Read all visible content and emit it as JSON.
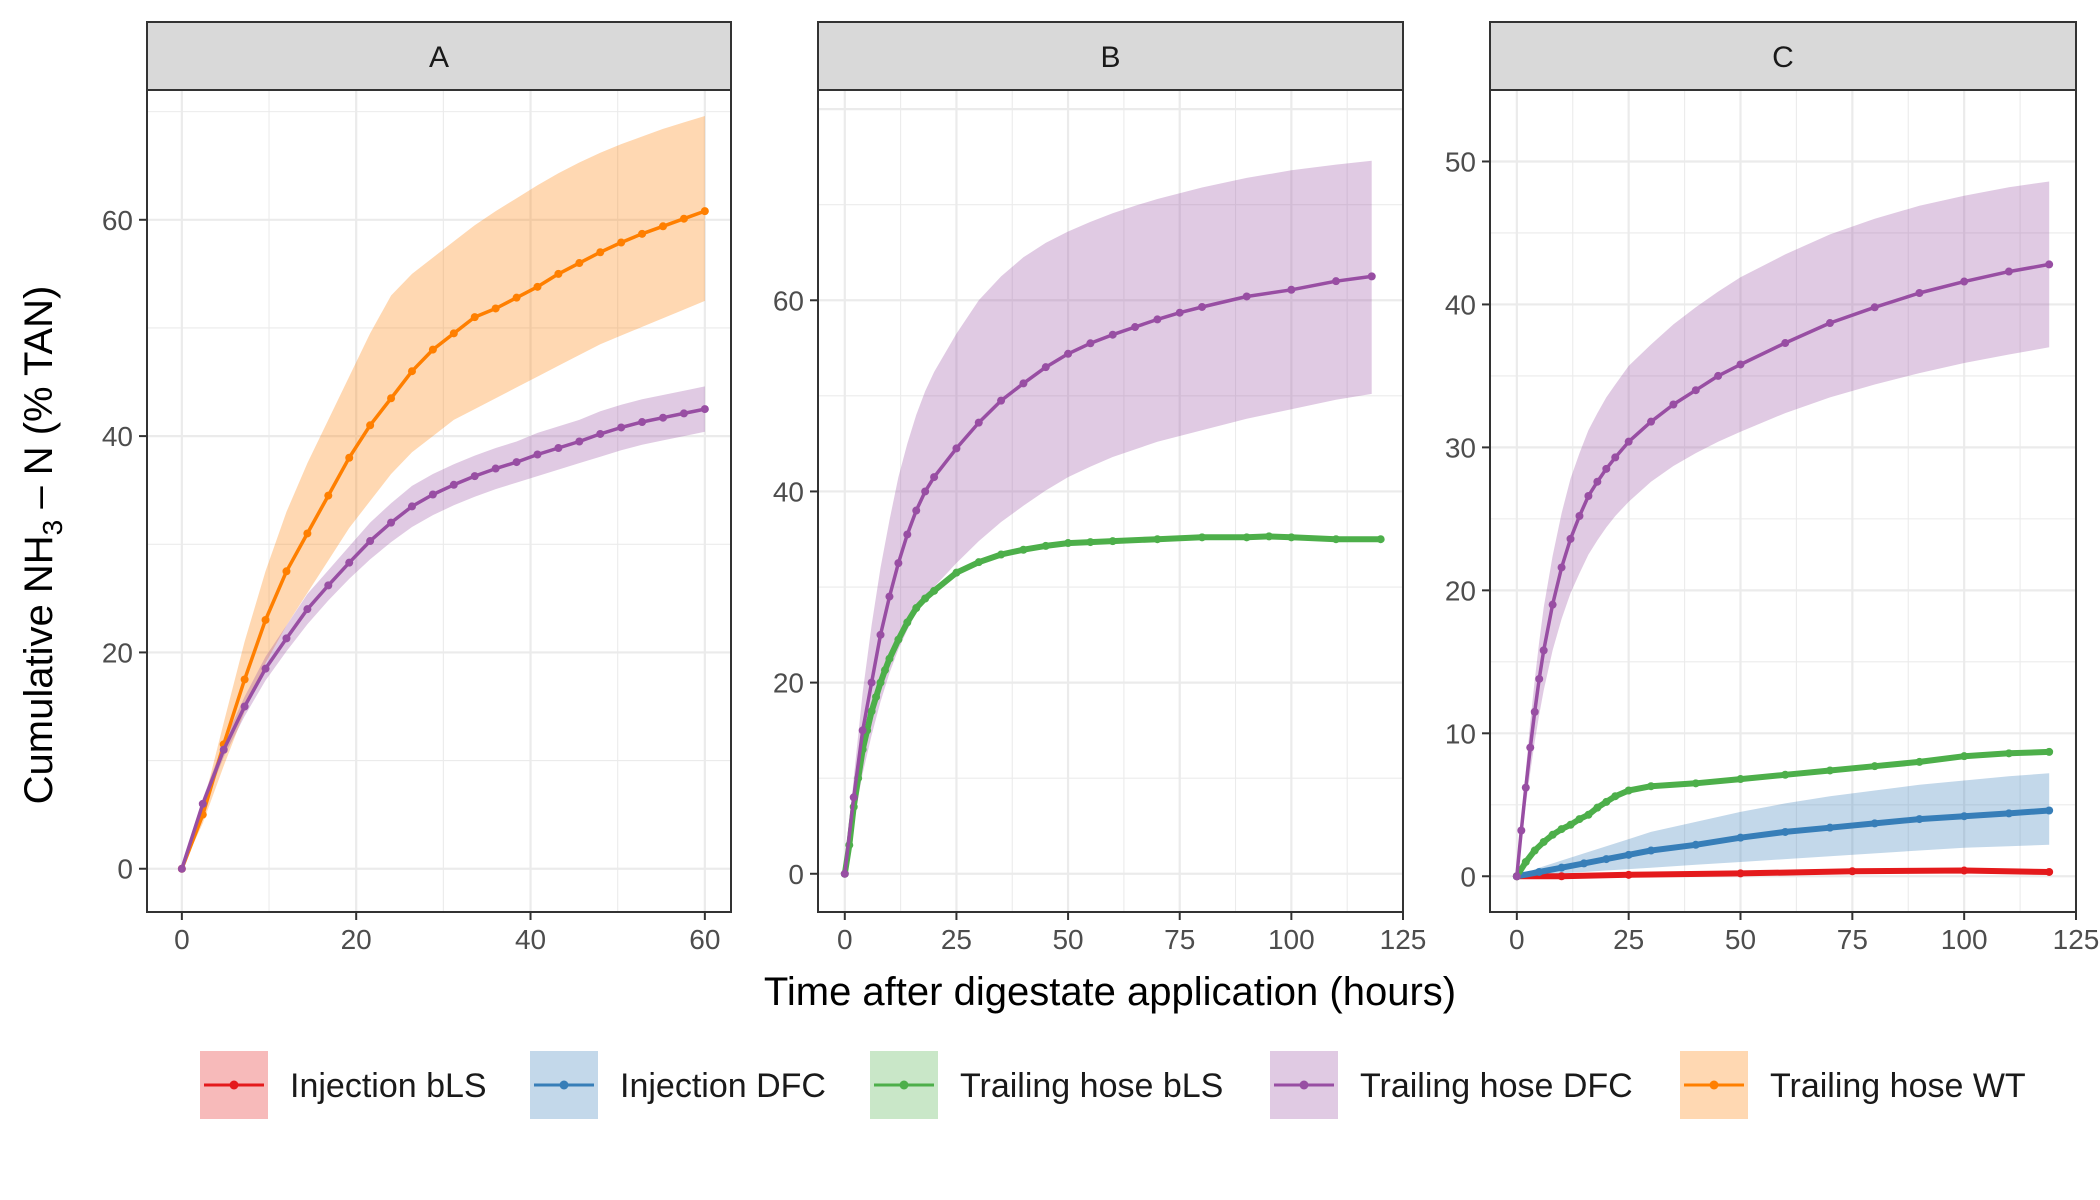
{
  "colors": {
    "Injection bLS": "#E41A1C",
    "Injection DFC": "#377EB8",
    "Trailing hose bLS": "#4DAF4A",
    "Trailing hose DFC": "#984EA3",
    "Trailing hose WT": "#FF7F00"
  },
  "axes": {
    "xlabel": "Time after digestate application (hours)",
    "ylabel_prefix": "Cumulative  NH",
    "ylabel_sub": "3",
    "ylabel_suffix": " – N  (% TAN)"
  },
  "legend": {
    "position": "bottom",
    "items": [
      "Injection bLS",
      "Injection DFC",
      "Trailing hose bLS",
      "Trailing hose DFC",
      "Trailing hose WT"
    ]
  },
  "chart_data": [
    {
      "type": "line",
      "panel": "A",
      "xlim": [
        -4,
        63
      ],
      "ylim": [
        -4,
        72
      ],
      "xticks": [
        0,
        20,
        40,
        60
      ],
      "yticks": [
        0,
        20,
        40,
        60
      ],
      "grid": true,
      "series": [
        {
          "name": "Trailing hose WT",
          "x": [
            0,
            2.4,
            4.8,
            7.2,
            9.6,
            12,
            14.4,
            16.8,
            19.2,
            21.6,
            24,
            26.4,
            28.8,
            31.2,
            33.6,
            36,
            38.4,
            40.8,
            43.2,
            45.6,
            48,
            50.4,
            52.8,
            55.2,
            57.6,
            60
          ],
          "y": [
            0,
            5,
            11.5,
            17.5,
            23,
            27.5,
            31,
            34.5,
            38,
            41,
            43.5,
            46,
            48,
            49.5,
            51,
            51.8,
            52.8,
            53.8,
            55,
            56,
            57,
            57.9,
            58.7,
            59.4,
            60.1,
            60.8
          ],
          "lower": [
            0,
            4.2,
            9.5,
            14.5,
            19,
            22.5,
            25.5,
            28.5,
            31.5,
            34,
            36.5,
            38.5,
            40,
            41.5,
            42.5,
            43.5,
            44.5,
            45.5,
            46.5,
            47.5,
            48.5,
            49.3,
            50.1,
            50.9,
            51.7,
            52.5
          ],
          "upper": [
            0,
            5.8,
            13.5,
            21,
            27.5,
            33,
            37.5,
            41.5,
            45.5,
            49.5,
            53,
            55,
            56.5,
            58,
            59.5,
            60.8,
            62,
            63.2,
            64.3,
            65.3,
            66.2,
            67,
            67.7,
            68.4,
            69,
            69.6
          ]
        },
        {
          "name": "Trailing hose DFC",
          "x": [
            0,
            2.4,
            4.8,
            7.2,
            9.6,
            12,
            14.4,
            16.8,
            19.2,
            21.6,
            24,
            26.4,
            28.8,
            31.2,
            33.6,
            36,
            38.4,
            40.8,
            43.2,
            45.6,
            48,
            50.4,
            52.8,
            55.2,
            57.6,
            60
          ],
          "y": [
            0,
            6,
            11,
            15,
            18.5,
            21.3,
            24,
            26.2,
            28.3,
            30.3,
            32,
            33.5,
            34.6,
            35.5,
            36.3,
            37,
            37.6,
            38.3,
            38.9,
            39.5,
            40.2,
            40.8,
            41.3,
            41.7,
            42.1,
            42.5
          ],
          "lower": [
            0,
            5.5,
            10.3,
            14.1,
            17.4,
            20.1,
            22.6,
            24.8,
            26.8,
            28.6,
            30.2,
            31.6,
            32.7,
            33.6,
            34.4,
            35.1,
            35.7,
            36.3,
            36.9,
            37.5,
            38.1,
            38.7,
            39.2,
            39.6,
            40,
            40.4
          ],
          "upper": [
            0,
            6.5,
            11.7,
            15.9,
            19.6,
            22.5,
            25.4,
            27.6,
            29.8,
            32,
            33.8,
            35.4,
            36.5,
            37.4,
            38.2,
            38.9,
            39.5,
            40.3,
            40.9,
            41.5,
            42.3,
            42.9,
            43.4,
            43.8,
            44.2,
            44.6
          ]
        }
      ]
    },
    {
      "type": "line",
      "panel": "B",
      "xlim": [
        -6,
        125
      ],
      "ylim": [
        -4,
        82
      ],
      "xticks": [
        0,
        25,
        50,
        75,
        100,
        125
      ],
      "yticks": [
        0,
        20,
        40,
        60
      ],
      "grid": true,
      "series": [
        {
          "name": "Trailing hose bLS",
          "x": [
            0,
            1,
            2,
            3,
            4,
            5,
            6,
            7,
            8,
            9,
            10,
            12,
            14,
            16,
            18,
            20,
            25,
            30,
            35,
            40,
            45,
            50,
            55,
            60,
            70,
            80,
            90,
            95,
            100,
            110,
            120
          ],
          "y": [
            0,
            3,
            7,
            10,
            13,
            15,
            17,
            18.5,
            20,
            21.3,
            22.5,
            24.5,
            26.3,
            27.8,
            28.8,
            29.6,
            31.5,
            32.6,
            33.4,
            33.9,
            34.3,
            34.6,
            34.7,
            34.8,
            35,
            35.2,
            35.2,
            35.3,
            35.2,
            35,
            35
          ]
        },
        {
          "name": "Trailing hose DFC",
          "x": [
            0,
            2,
            4,
            6,
            8,
            10,
            12,
            14,
            16,
            18,
            20,
            25,
            30,
            35,
            40,
            45,
            50,
            55,
            60,
            65,
            70,
            75,
            80,
            90,
            100,
            110,
            118
          ],
          "y": [
            0,
            8,
            15,
            20,
            25,
            29,
            32.5,
            35.5,
            38,
            40,
            41.5,
            44.5,
            47.2,
            49.5,
            51.3,
            53,
            54.4,
            55.5,
            56.4,
            57.2,
            58,
            58.7,
            59.3,
            60.4,
            61.1,
            62,
            62.5
          ],
          "lower": [
            0,
            5.5,
            10.5,
            14.5,
            18,
            21,
            23.5,
            25.5,
            27.3,
            28.8,
            30,
            32.5,
            34.8,
            36.8,
            38.5,
            40.1,
            41.5,
            42.6,
            43.6,
            44.4,
            45.2,
            45.8,
            46.4,
            47.6,
            48.6,
            49.6,
            50.2
          ],
          "upper": [
            0,
            10,
            19,
            26,
            32,
            37,
            41.5,
            45,
            48,
            50.5,
            52.5,
            56.5,
            60,
            62.5,
            64.5,
            66,
            67.2,
            68.2,
            69.1,
            69.9,
            70.6,
            71.2,
            71.8,
            72.8,
            73.6,
            74.2,
            74.6
          ]
        }
      ]
    },
    {
      "type": "line",
      "panel": "C",
      "xlim": [
        -6,
        125
      ],
      "ylim": [
        -2.5,
        55
      ],
      "xticks": [
        0,
        25,
        50,
        75,
        100,
        125
      ],
      "yticks": [
        0,
        10,
        20,
        30,
        40,
        50
      ],
      "grid": true,
      "series": [
        {
          "name": "Injection bLS",
          "x": [
            0,
            10,
            25,
            50,
            75,
            100,
            119
          ],
          "y": [
            0,
            0,
            0.1,
            0.2,
            0.35,
            0.4,
            0.3
          ]
        },
        {
          "name": "Injection DFC",
          "x": [
            0,
            5,
            10,
            15,
            20,
            25,
            30,
            40,
            50,
            60,
            70,
            80,
            90,
            100,
            110,
            119
          ],
          "y": [
            0,
            0.3,
            0.6,
            0.9,
            1.2,
            1.5,
            1.8,
            2.2,
            2.7,
            3.1,
            3.4,
            3.7,
            4,
            4.2,
            4.4,
            4.6
          ],
          "lower": [
            0,
            0.1,
            0.2,
            0.3,
            0.4,
            0.5,
            0.6,
            0.8,
            1,
            1.2,
            1.4,
            1.6,
            1.8,
            2,
            2.1,
            2.2
          ],
          "upper": [
            0,
            0.6,
            1.1,
            1.6,
            2.1,
            2.6,
            3.1,
            3.8,
            4.5,
            5.1,
            5.6,
            6,
            6.4,
            6.7,
            7,
            7.2
          ]
        },
        {
          "name": "Trailing hose bLS",
          "x": [
            0,
            2,
            4,
            6,
            8,
            10,
            12,
            14,
            16,
            18,
            20,
            22,
            25,
            30,
            40,
            50,
            60,
            70,
            80,
            90,
            100,
            110,
            119
          ],
          "y": [
            0,
            1,
            1.8,
            2.4,
            2.9,
            3.3,
            3.6,
            4,
            4.3,
            4.8,
            5.2,
            5.6,
            6,
            6.3,
            6.5,
            6.8,
            7.1,
            7.4,
            7.7,
            8,
            8.4,
            8.6,
            8.7
          ]
        },
        {
          "name": "Trailing hose DFC",
          "x": [
            0,
            1,
            2,
            3,
            4,
            5,
            6,
            8,
            10,
            12,
            14,
            16,
            18,
            20,
            22,
            25,
            30,
            35,
            40,
            45,
            50,
            60,
            70,
            80,
            90,
            100,
            110,
            119
          ],
          "y": [
            0,
            3.2,
            6.2,
            9,
            11.5,
            13.8,
            15.8,
            19,
            21.6,
            23.6,
            25.2,
            26.6,
            27.6,
            28.5,
            29.3,
            30.4,
            31.8,
            33,
            34,
            35,
            35.8,
            37.3,
            38.7,
            39.8,
            40.8,
            41.6,
            42.3,
            42.8
          ],
          "lower": [
            0,
            2.6,
            5,
            7.3,
            9.4,
            11.3,
            13,
            15.8,
            18,
            19.8,
            21.2,
            22.5,
            23.5,
            24.4,
            25.2,
            26.2,
            27.6,
            28.7,
            29.6,
            30.4,
            31.1,
            32.4,
            33.5,
            34.4,
            35.2,
            35.9,
            36.5,
            37
          ],
          "upper": [
            0,
            3.8,
            7.4,
            10.8,
            13.7,
            16.4,
            18.8,
            22.4,
            25.4,
            27.8,
            29.6,
            31.2,
            32.4,
            33.5,
            34.4,
            35.7,
            37.2,
            38.6,
            39.8,
            40.9,
            41.9,
            43.5,
            44.9,
            46,
            46.9,
            47.6,
            48.2,
            48.6
          ]
        }
      ]
    }
  ],
  "panels": [
    {
      "strip_label": "A"
    },
    {
      "strip_label": "B"
    },
    {
      "strip_label": "C"
    }
  ]
}
